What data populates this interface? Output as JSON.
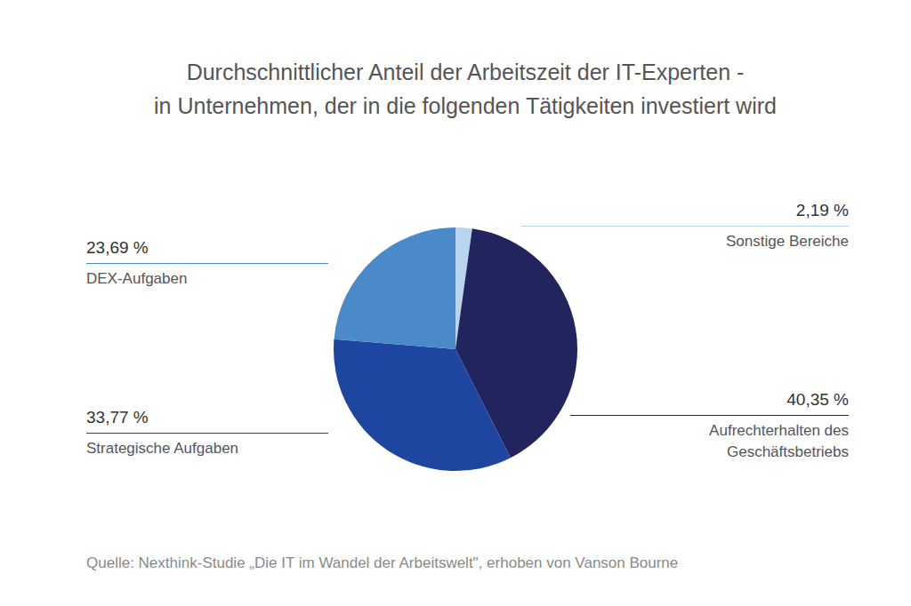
{
  "chart_data": {
    "type": "pie",
    "title": "Durchschnittlicher Anteil der Arbeitszeit der IT-Experten -\nin Unternehmen, der in die folgenden Tätigkeiten investiert wird",
    "categories": [
      "Sonstige Bereiche",
      "Aufrechterhalten des Geschäftsbetriebs",
      "Strategische Aufgaben",
      "DEX-Aufgaben"
    ],
    "values": [
      2.19,
      40.35,
      33.77,
      23.69
    ],
    "value_labels": [
      "2,19 %",
      "40,35 %",
      "33,77 %",
      "23,69 %"
    ],
    "colors": [
      "#b8d4ef",
      "#22245e",
      "#1e46a0",
      "#4a8ac9"
    ],
    "data_labels": true,
    "source": "Quelle: Nexthink-Studie „Die IT im Wandel der Arbeitswelt\", erhoben von Vanson Bourne"
  }
}
